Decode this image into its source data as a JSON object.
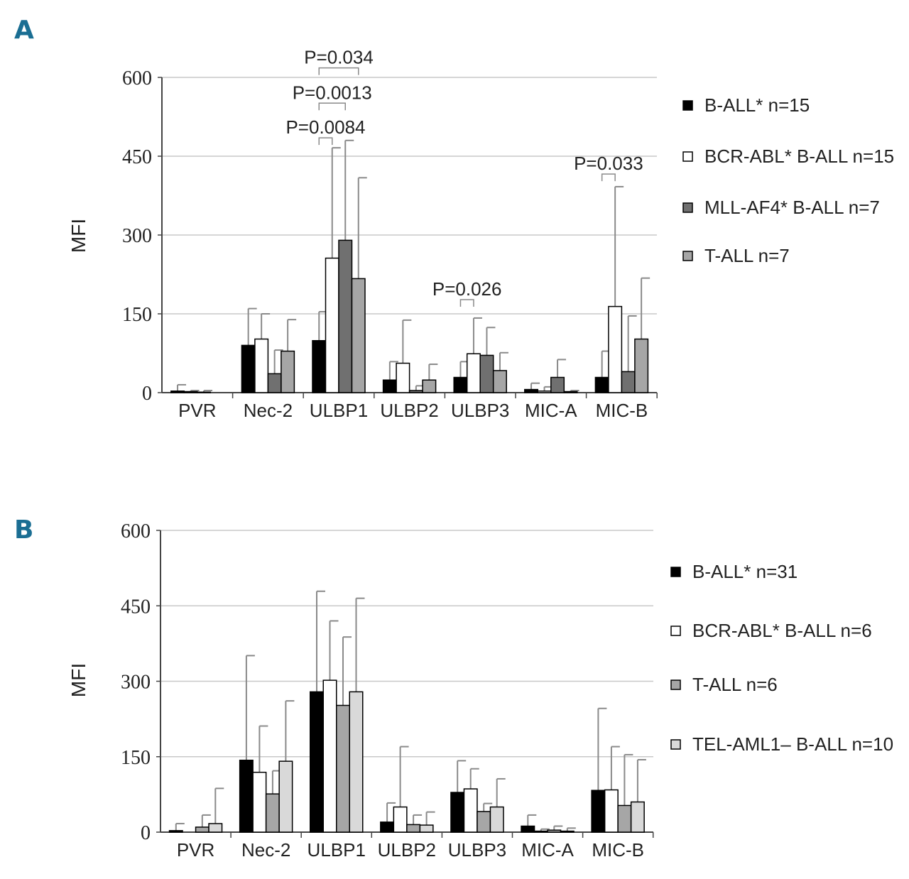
{
  "chart_data": [
    {
      "panel": "A",
      "type": "bar",
      "ylabel": "MFI",
      "ylim": [
        0,
        600
      ],
      "yticks": [
        "0",
        "150",
        "300",
        "450",
        "600"
      ],
      "grid": true,
      "categories": [
        "PVR",
        "Nec-2",
        "ULBP1",
        "ULBP2",
        "ULBP3",
        "MIC-A",
        "MIC-B"
      ],
      "series": [
        {
          "name": "B-ALL* n=15",
          "fill": "#000000",
          "values": [
            3,
            90,
            99,
            24,
            29,
            6,
            29
          ],
          "errors": [
            12,
            70,
            55,
            35,
            30,
            12,
            50
          ]
        },
        {
          "name": "BCR-ABL* B-ALL n=15",
          "fill": "#ffffff",
          "values": [
            2,
            102,
            256,
            56,
            74,
            3,
            164
          ],
          "errors": [
            2,
            48,
            210,
            82,
            68,
            8,
            228
          ]
        },
        {
          "name": "MLL-AF4* B-ALL n=7",
          "fill": "#707070",
          "values": [
            1,
            36,
            290,
            4,
            71,
            29,
            40
          ],
          "errors": [
            3,
            45,
            190,
            9,
            53,
            34,
            106
          ]
        },
        {
          "name": "T-ALL n=7",
          "fill": "#a6a6a6",
          "values": [
            0,
            79,
            217,
            24,
            42,
            2,
            102
          ],
          "errors": [
            0,
            60,
            192,
            30,
            34,
            2,
            116
          ]
        }
      ],
      "annotations": [
        {
          "label": "P=0.0084",
          "category": 2,
          "from_series": 0,
          "to_series": 1,
          "y": 485
        },
        {
          "label": "P=0.0013",
          "category": 2,
          "from_series": 0,
          "to_series": 2,
          "y": 551
        },
        {
          "label": "P=0.034",
          "category": 2,
          "from_series": 0,
          "to_series": 3,
          "y": 618
        },
        {
          "label": "P=0.026",
          "category": 4,
          "from_series": 0,
          "to_series": 1,
          "y": 177
        },
        {
          "label": "P=0.033",
          "category": 6,
          "from_series": 0,
          "to_series": 1,
          "y": 416
        }
      ]
    },
    {
      "panel": "B",
      "type": "bar",
      "ylabel": "MFI",
      "ylim": [
        0,
        600
      ],
      "yticks": [
        "0",
        "150",
        "300",
        "450",
        "600"
      ],
      "grid": true,
      "categories": [
        "PVR",
        "Nec-2",
        "ULBP1",
        "ULBP2",
        "ULBP3",
        "MIC-A",
        "MIC-B"
      ],
      "series": [
        {
          "name": "B-ALL* n=31",
          "fill": "#000000",
          "values": [
            3,
            143,
            279,
            20,
            79,
            12,
            83
          ],
          "errors": [
            14,
            208,
            200,
            38,
            63,
            22,
            163
          ]
        },
        {
          "name": "BCR-ABL* B-ALL n=6",
          "fill": "#ffffff",
          "values": [
            0,
            119,
            302,
            50,
            86,
            2,
            84
          ],
          "errors": [
            0,
            92,
            118,
            120,
            40,
            4,
            86
          ]
        },
        {
          "name": "T-ALL n=6",
          "fill": "#a6a6a6",
          "values": [
            10,
            76,
            252,
            15,
            41,
            4,
            53
          ],
          "errors": [
            24,
            46,
            136,
            19,
            16,
            8,
            101
          ]
        },
        {
          "name": "TEL-AML1– B-ALL n=10",
          "fill": "#d9d9d9",
          "values": [
            17,
            141,
            279,
            14,
            50,
            2,
            60
          ],
          "errors": [
            70,
            120,
            186,
            26,
            56,
            6,
            84
          ]
        }
      ],
      "annotations": []
    }
  ],
  "panel_labels": [
    "A",
    "B"
  ]
}
